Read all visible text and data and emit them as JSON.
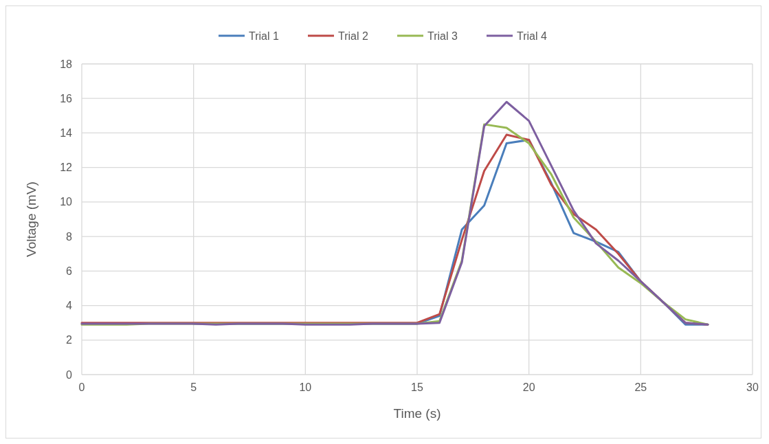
{
  "chart_data": {
    "type": "line",
    "xlabel": "Time (s)",
    "ylabel": "Voltage (mV)",
    "x": [
      0,
      1,
      2,
      3,
      4,
      5,
      6,
      7,
      8,
      9,
      10,
      11,
      12,
      13,
      14,
      15,
      16,
      17,
      18,
      19,
      20,
      21,
      22,
      23,
      24,
      25,
      26,
      27,
      28
    ],
    "series": [
      {
        "name": "Trial 1",
        "color": "#4a7ebb",
        "values": [
          null,
          null,
          null,
          null,
          null,
          2.95,
          2.95,
          2.95,
          2.95,
          2.95,
          2.95,
          2.95,
          2.95,
          2.95,
          2.95,
          2.95,
          3.4,
          8.4,
          9.8,
          13.4,
          13.6,
          11.1,
          8.2,
          7.7,
          7.1,
          5.4,
          4.2,
          2.9,
          2.9
        ]
      },
      {
        "name": "Trial 2",
        "color": "#be4b48",
        "values": [
          3.0,
          3.0,
          3.0,
          3.0,
          3.0,
          3.0,
          3.0,
          3.0,
          3.0,
          3.0,
          3.0,
          3.0,
          3.0,
          3.0,
          3.0,
          3.0,
          3.5,
          7.8,
          11.8,
          13.9,
          13.6,
          11.0,
          9.3,
          8.4,
          7.0,
          5.4,
          4.2,
          3.0,
          2.9
        ]
      },
      {
        "name": "Trial 3",
        "color": "#98b954",
        "values": [
          2.9,
          2.9,
          2.9,
          2.95,
          2.95,
          2.95,
          2.95,
          2.95,
          2.95,
          2.95,
          2.95,
          2.95,
          2.95,
          2.95,
          2.95,
          2.95,
          3.1,
          6.6,
          14.5,
          14.3,
          13.4,
          11.6,
          9.1,
          7.7,
          6.2,
          5.3,
          4.2,
          3.2,
          2.9
        ]
      },
      {
        "name": "Trial 4",
        "color": "#7d5fa0",
        "values": [
          2.95,
          2.95,
          2.95,
          2.95,
          2.95,
          2.95,
          2.9,
          2.95,
          2.95,
          2.95,
          2.9,
          2.9,
          2.9,
          2.95,
          2.95,
          2.95,
          3.0,
          6.5,
          14.4,
          15.8,
          14.7,
          12.1,
          9.5,
          7.6,
          6.6,
          5.4,
          4.2,
          3.0,
          2.9
        ]
      }
    ],
    "xlim": [
      0,
      30
    ],
    "xticks": [
      0,
      5,
      10,
      15,
      20,
      25,
      30
    ],
    "ylim": [
      0,
      18
    ],
    "yticks": [
      0,
      2,
      4,
      6,
      8,
      10,
      12,
      14,
      16,
      18
    ],
    "grid": true,
    "legend": "top",
    "marker": "none",
    "line_style": "solid"
  }
}
